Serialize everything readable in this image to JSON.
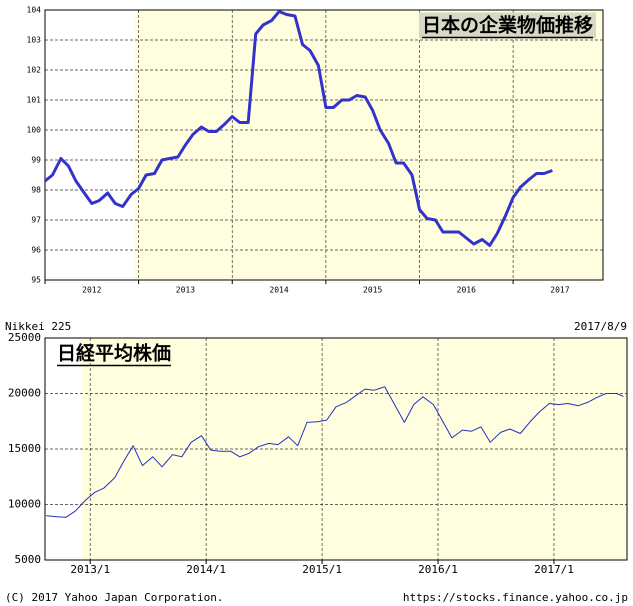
{
  "chart_data": [
    {
      "type": "line",
      "title": "日本の企業物価推移",
      "color": "#3333cc",
      "shaded_from": 2012.96,
      "xlim": [
        2012,
        2017.96
      ],
      "xticks": [
        2012,
        2013,
        2014,
        2015,
        2016,
        2017
      ],
      "ylim": [
        95,
        104
      ],
      "yticks": [
        95,
        96,
        97,
        98,
        99,
        100,
        101,
        102,
        103,
        104
      ],
      "grid": true,
      "x": [
        2012.0,
        2012.08,
        2012.17,
        2012.25,
        2012.33,
        2012.42,
        2012.5,
        2012.58,
        2012.67,
        2012.75,
        2012.83,
        2012.92,
        2013.0,
        2013.08,
        2013.17,
        2013.25,
        2013.33,
        2013.42,
        2013.5,
        2013.58,
        2013.67,
        2013.75,
        2013.83,
        2013.92,
        2014.0,
        2014.08,
        2014.17,
        2014.25,
        2014.33,
        2014.42,
        2014.5,
        2014.58,
        2014.67,
        2014.75,
        2014.83,
        2014.92,
        2015.0,
        2015.08,
        2015.17,
        2015.25,
        2015.33,
        2015.42,
        2015.5,
        2015.58,
        2015.67,
        2015.75,
        2015.83,
        2015.92,
        2016.0,
        2016.08,
        2016.17,
        2016.25,
        2016.33,
        2016.42,
        2016.5,
        2016.58,
        2016.67,
        2016.75,
        2016.83,
        2016.92,
        2017.0,
        2017.08,
        2017.17,
        2017.25,
        2017.33,
        2017.42
      ],
      "values": [
        98.3,
        98.5,
        99.05,
        98.8,
        98.3,
        97.9,
        97.55,
        97.65,
        97.9,
        97.55,
        97.45,
        97.85,
        98.05,
        98.5,
        98.55,
        99.0,
        99.05,
        99.1,
        99.5,
        99.85,
        100.1,
        99.95,
        99.95,
        100.2,
        100.45,
        100.25,
        100.25,
        103.2,
        103.5,
        103.65,
        103.95,
        103.85,
        103.8,
        102.85,
        102.65,
        102.15,
        100.75,
        100.75,
        101.0,
        101.0,
        101.15,
        101.1,
        100.65,
        100.0,
        99.55,
        98.9,
        98.9,
        98.5,
        97.35,
        97.05,
        97.0,
        96.6,
        96.6,
        96.6,
        96.4,
        96.2,
        96.35,
        96.15,
        96.55,
        97.15,
        97.75,
        98.1,
        98.35,
        98.55,
        98.55,
        98.65
      ]
    },
    {
      "type": "line",
      "title": "日経平均株価",
      "label": "Nikkei 225",
      "date": "2017/8/9",
      "color": "#2233bb",
      "shaded_from": 2012.92,
      "xlim": [
        2012.61,
        2017.63
      ],
      "xticks": [
        {
          "value": 2013,
          "label": "2013/1"
        },
        {
          "value": 2014,
          "label": "2014/1"
        },
        {
          "value": 2015,
          "label": "2015/1"
        },
        {
          "value": 2016,
          "label": "2016/1"
        },
        {
          "value": 2017,
          "label": "2017/1"
        }
      ],
      "ylim": [
        5000,
        25000
      ],
      "yticks": [
        5000,
        10000,
        15000,
        20000,
        25000
      ],
      "grid": true,
      "x": [
        2012.62,
        2012.71,
        2012.79,
        2012.87,
        2012.96,
        2013.04,
        2013.12,
        2013.21,
        2013.29,
        2013.37,
        2013.45,
        2013.54,
        2013.62,
        2013.71,
        2013.79,
        2013.87,
        2013.96,
        2014.04,
        2014.12,
        2014.21,
        2014.29,
        2014.37,
        2014.45,
        2014.54,
        2014.62,
        2014.71,
        2014.79,
        2014.87,
        2014.96,
        2015.04,
        2015.12,
        2015.21,
        2015.29,
        2015.37,
        2015.45,
        2015.54,
        2015.62,
        2015.71,
        2015.79,
        2015.87,
        2015.96,
        2016.04,
        2016.12,
        2016.21,
        2016.29,
        2016.37,
        2016.45,
        2016.54,
        2016.62,
        2016.71,
        2016.79,
        2016.87,
        2016.96,
        2017.04,
        2017.12,
        2017.21,
        2017.29,
        2017.37,
        2017.45,
        2017.54,
        2017.6
      ],
      "values": [
        9000,
        8900,
        8850,
        9400,
        10400,
        11100,
        11500,
        12400,
        13900,
        15300,
        13500,
        14300,
        13400,
        14500,
        14300,
        15600,
        16200,
        14900,
        14800,
        14800,
        14300,
        14600,
        15200,
        15500,
        15400,
        16100,
        15300,
        17400,
        17450,
        17600,
        18800,
        19200,
        19800,
        20400,
        20300,
        20600,
        19100,
        17400,
        19000,
        19700,
        19000,
        17500,
        16000,
        16700,
        16600,
        17000,
        15600,
        16500,
        16800,
        16400,
        17400,
        18300,
        19100,
        19000,
        19100,
        18900,
        19200,
        19650,
        20000,
        20000,
        19740
      ]
    }
  ],
  "footer": {
    "copyright": "(C) 2017 Yahoo Japan Corporation.",
    "url": "https://stocks.finance.yahoo.co.jp"
  }
}
